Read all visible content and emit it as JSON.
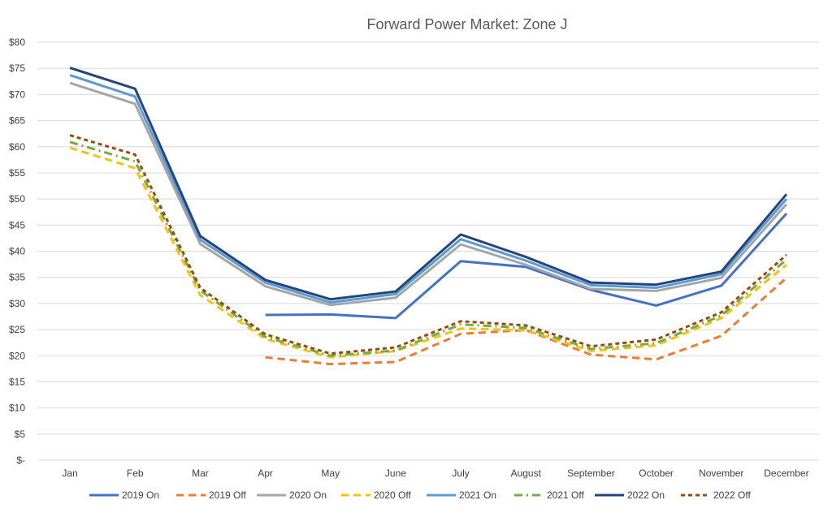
{
  "chart_data": {
    "type": "line",
    "title": "Forward Power Market: Zone J",
    "xlabel": "",
    "ylabel": "",
    "categories": [
      "Jan",
      "Feb",
      "Mar",
      "Apr",
      "May",
      "June",
      "July",
      "August",
      "September",
      "October",
      "November",
      "December"
    ],
    "ylim": [
      0,
      80
    ],
    "yticks": [
      0,
      5,
      10,
      15,
      20,
      25,
      30,
      35,
      40,
      45,
      50,
      55,
      60,
      65,
      70,
      75,
      80
    ],
    "ytick_labels": [
      "$-",
      "$5",
      "$10",
      "$15",
      "$20",
      "$25",
      "$30",
      "$35",
      "$40",
      "$45",
      "$50",
      "$55",
      "$60",
      "$65",
      "$70",
      "$75",
      "$80"
    ],
    "grid": true,
    "legend_position": "bottom",
    "series": [
      {
        "name": "2019 On",
        "color": "#4472C4",
        "dash": "solid",
        "values": [
          null,
          null,
          null,
          27.8,
          27.9,
          27.2,
          38.1,
          37.0,
          32.6,
          29.6,
          33.4,
          47.2
        ]
      },
      {
        "name": "2019 Off",
        "color": "#ED7D31",
        "dash": "dashed",
        "values": [
          null,
          null,
          null,
          19.7,
          18.4,
          18.8,
          24.2,
          24.9,
          20.2,
          19.3,
          23.8,
          34.9
        ]
      },
      {
        "name": "2020 On",
        "color": "#A5A5A5",
        "dash": "solid",
        "values": [
          72.2,
          68.2,
          41.4,
          33.3,
          29.7,
          31.1,
          41.3,
          37.4,
          32.8,
          32.4,
          34.9,
          49.0
        ]
      },
      {
        "name": "2020 Off",
        "color": "#FFC000",
        "dash": "dashed",
        "values": [
          59.8,
          55.9,
          31.6,
          23.2,
          19.7,
          20.9,
          25.2,
          24.9,
          20.9,
          22.0,
          27.2,
          37.4
        ]
      },
      {
        "name": "2021 On",
        "color": "#5B9BD5",
        "dash": "solid",
        "values": [
          73.7,
          69.6,
          42.2,
          34.0,
          30.2,
          31.8,
          42.3,
          38.2,
          33.5,
          33.0,
          35.6,
          50.0
        ]
      },
      {
        "name": "2021 Off",
        "color": "#70AD47",
        "dash": "dashdot",
        "values": [
          60.9,
          57.2,
          32.5,
          23.6,
          20.0,
          21.0,
          26.0,
          25.3,
          21.3,
          22.4,
          27.7,
          38.4
        ]
      },
      {
        "name": "2022 On",
        "color": "#264478",
        "dash": "solid",
        "values": [
          75.1,
          71.1,
          42.9,
          34.5,
          30.8,
          32.3,
          43.2,
          38.9,
          34.0,
          33.6,
          36.1,
          50.9
        ]
      },
      {
        "name": "2022 Off",
        "color": "#9E480E",
        "dash": "dotted",
        "values": [
          62.2,
          58.5,
          33.0,
          24.1,
          20.4,
          21.6,
          26.6,
          25.8,
          21.8,
          23.1,
          28.3,
          39.3
        ]
      }
    ]
  }
}
